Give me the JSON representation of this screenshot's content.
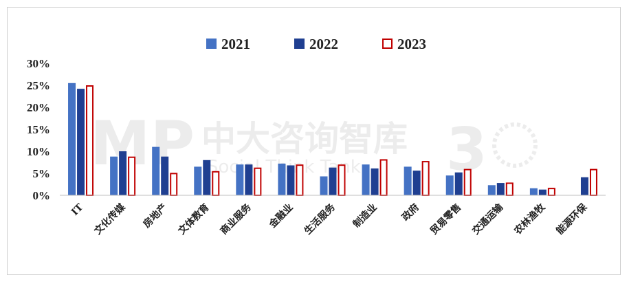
{
  "chart_data": {
    "type": "bar",
    "categories": [
      "IT",
      "文化传媒",
      "房地产",
      "文体教育",
      "商业服务",
      "金融业",
      "生活服务",
      "制造业",
      "政府",
      "贸易零售",
      "交通运输",
      "农林渔牧",
      "能源环保"
    ],
    "series": [
      {
        "name": "2021",
        "values": [
          25.5,
          8.8,
          11.0,
          6.5,
          7.0,
          7.2,
          4.3,
          7.0,
          6.5,
          4.5,
          2.3,
          1.6,
          null
        ]
      },
      {
        "name": "2022",
        "values": [
          24.2,
          10.0,
          8.8,
          8.0,
          7.0,
          6.8,
          6.3,
          6.1,
          5.6,
          5.2,
          2.8,
          1.3,
          4.1
        ]
      },
      {
        "name": "2023",
        "values": [
          25.0,
          8.8,
          5.1,
          5.5,
          6.3,
          7.0,
          7.0,
          8.2,
          7.8,
          6.0,
          2.9,
          1.7,
          6.0
        ]
      }
    ],
    "colors": [
      "#4472C4",
      "#1F3F91",
      "#C00000"
    ],
    "yticks": [
      "0%",
      "5%",
      "10%",
      "15%",
      "20%",
      "25%",
      "30%"
    ],
    "ylim": [
      0,
      30
    ],
    "grid": false,
    "legend": "top-center",
    "title": "",
    "xlabel": "",
    "ylabel": ""
  },
  "watermark": {
    "brand": "中大咨询智库",
    "sub": "Social Think Tank",
    "logo": "MP",
    "anniversary": "3"
  }
}
